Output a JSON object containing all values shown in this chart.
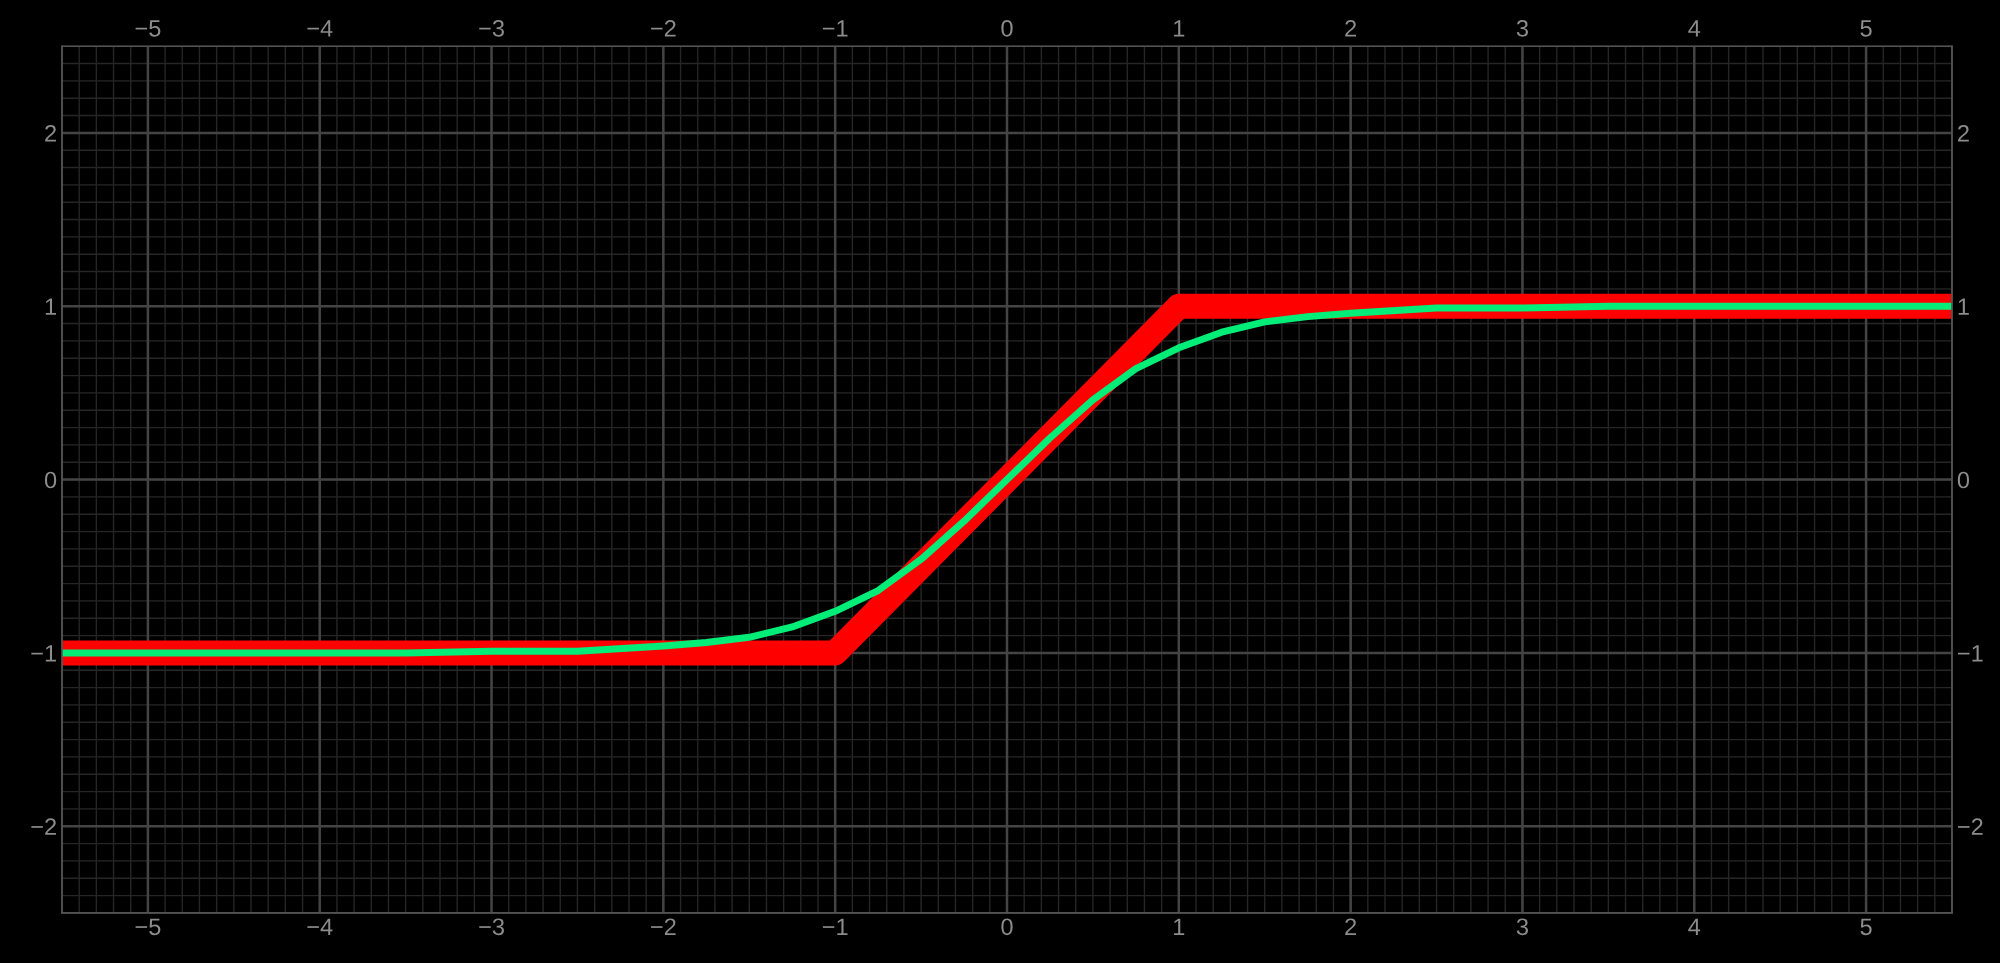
{
  "chart_data": {
    "type": "line",
    "series": [
      {
        "color": "#ff0000",
        "x": [
          -5.5,
          -1,
          1,
          5.5
        ],
        "values": [
          -1,
          -1,
          1,
          1
        ]
      },
      {
        "color": "#00ee77",
        "x": [
          -5.5,
          -5,
          -4.5,
          -4,
          -3.5,
          -3,
          -2.5,
          -2,
          -1.75,
          -1.5,
          -1.25,
          -1,
          -0.75,
          -0.5,
          -0.25,
          0,
          0.25,
          0.5,
          0.75,
          1,
          1.25,
          1.5,
          1.75,
          2,
          2.5,
          3,
          3.5,
          4,
          4.5,
          5,
          5.5
        ],
        "values": [
          -1.0,
          -1.0,
          -1.0,
          -1.0,
          -1.0,
          -0.99,
          -0.99,
          -0.96,
          -0.94,
          -0.91,
          -0.85,
          -0.76,
          -0.64,
          -0.46,
          -0.24,
          0,
          0.24,
          0.46,
          0.64,
          0.76,
          0.85,
          0.91,
          0.94,
          0.96,
          0.99,
          0.99,
          1.0,
          1.0,
          1.0,
          1.0,
          1.0
        ]
      }
    ],
    "xlim": [
      -5.5,
      5.5
    ],
    "ylim": [
      -2.5,
      2.5
    ],
    "xticks": [
      -5,
      -4,
      -3,
      -2,
      -1,
      0,
      1,
      2,
      3,
      4,
      5
    ],
    "yticks": [
      -2,
      -1,
      0,
      1,
      2
    ],
    "x2lim": [
      -5.5,
      5.5
    ],
    "x2ticks": [
      -5,
      -4,
      -3,
      -2,
      -1,
      0,
      1,
      2,
      3,
      4,
      5
    ],
    "y2lim": [
      -2.5,
      2.5
    ],
    "y2ticks": [
      -2,
      -1,
      0,
      1,
      2
    ],
    "grid": true
  }
}
